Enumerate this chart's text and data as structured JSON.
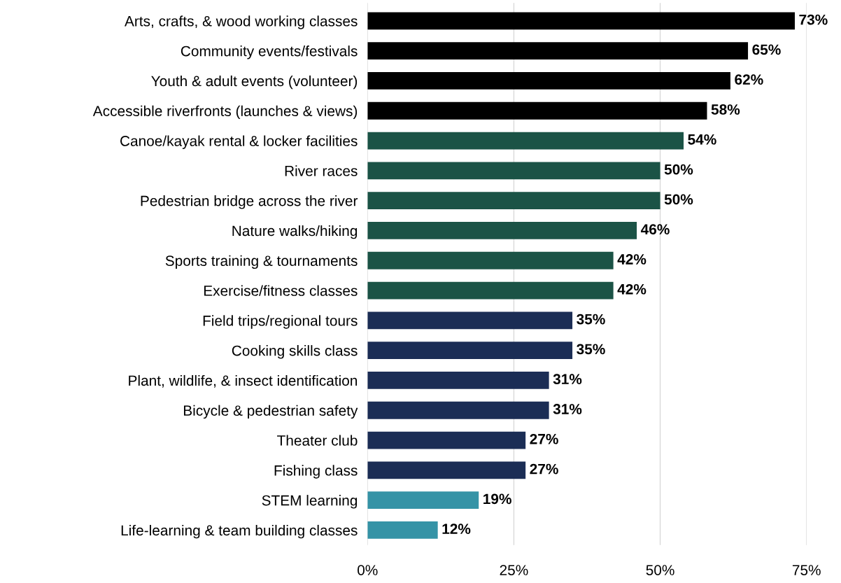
{
  "chart_data": {
    "type": "bar",
    "orientation": "horizontal",
    "categories": [
      "Arts, crafts, & wood working classes",
      "Community events/festivals",
      "Youth & adult events (volunteer)",
      "Accessible riverfronts (launches & views)",
      "Canoe/kayak rental & locker facilities",
      "River races",
      "Pedestrian bridge across the river",
      "Nature walks/hiking",
      "Sports training & tournaments",
      "Exercise/fitness classes",
      "Field trips/regional tours",
      "Cooking skills class",
      "Plant, wildlife, & insect identification",
      "Bicycle & pedestrian safety",
      "Theater club",
      "Fishing class",
      "STEM learning",
      "Life-learning & team building classes"
    ],
    "values": [
      73,
      65,
      62,
      58,
      54,
      50,
      50,
      46,
      42,
      42,
      35,
      35,
      31,
      31,
      27,
      27,
      19,
      12
    ],
    "value_labels": [
      "73%",
      "65%",
      "62%",
      "58%",
      "54%",
      "50%",
      "50%",
      "46%",
      "42%",
      "42%",
      "35%",
      "35%",
      "31%",
      "31%",
      "27%",
      "27%",
      "19%",
      "12%"
    ],
    "colors": [
      "#000000",
      "#000000",
      "#000000",
      "#000000",
      "#1b5346",
      "#1b5346",
      "#1b5346",
      "#1b5346",
      "#1b5346",
      "#1b5346",
      "#1b2d55",
      "#1b2d55",
      "#1b2d55",
      "#1b2d55",
      "#1b2d55",
      "#1b2d55",
      "#3593a6",
      "#3593a6"
    ],
    "xlim": [
      0,
      75
    ],
    "xticks": [
      {
        "value": 0,
        "label": "0%"
      },
      {
        "value": 25,
        "label": "25%"
      },
      {
        "value": 50,
        "label": "50%"
      },
      {
        "value": 75,
        "label": "75%"
      }
    ],
    "grid": "x",
    "legend": false
  }
}
